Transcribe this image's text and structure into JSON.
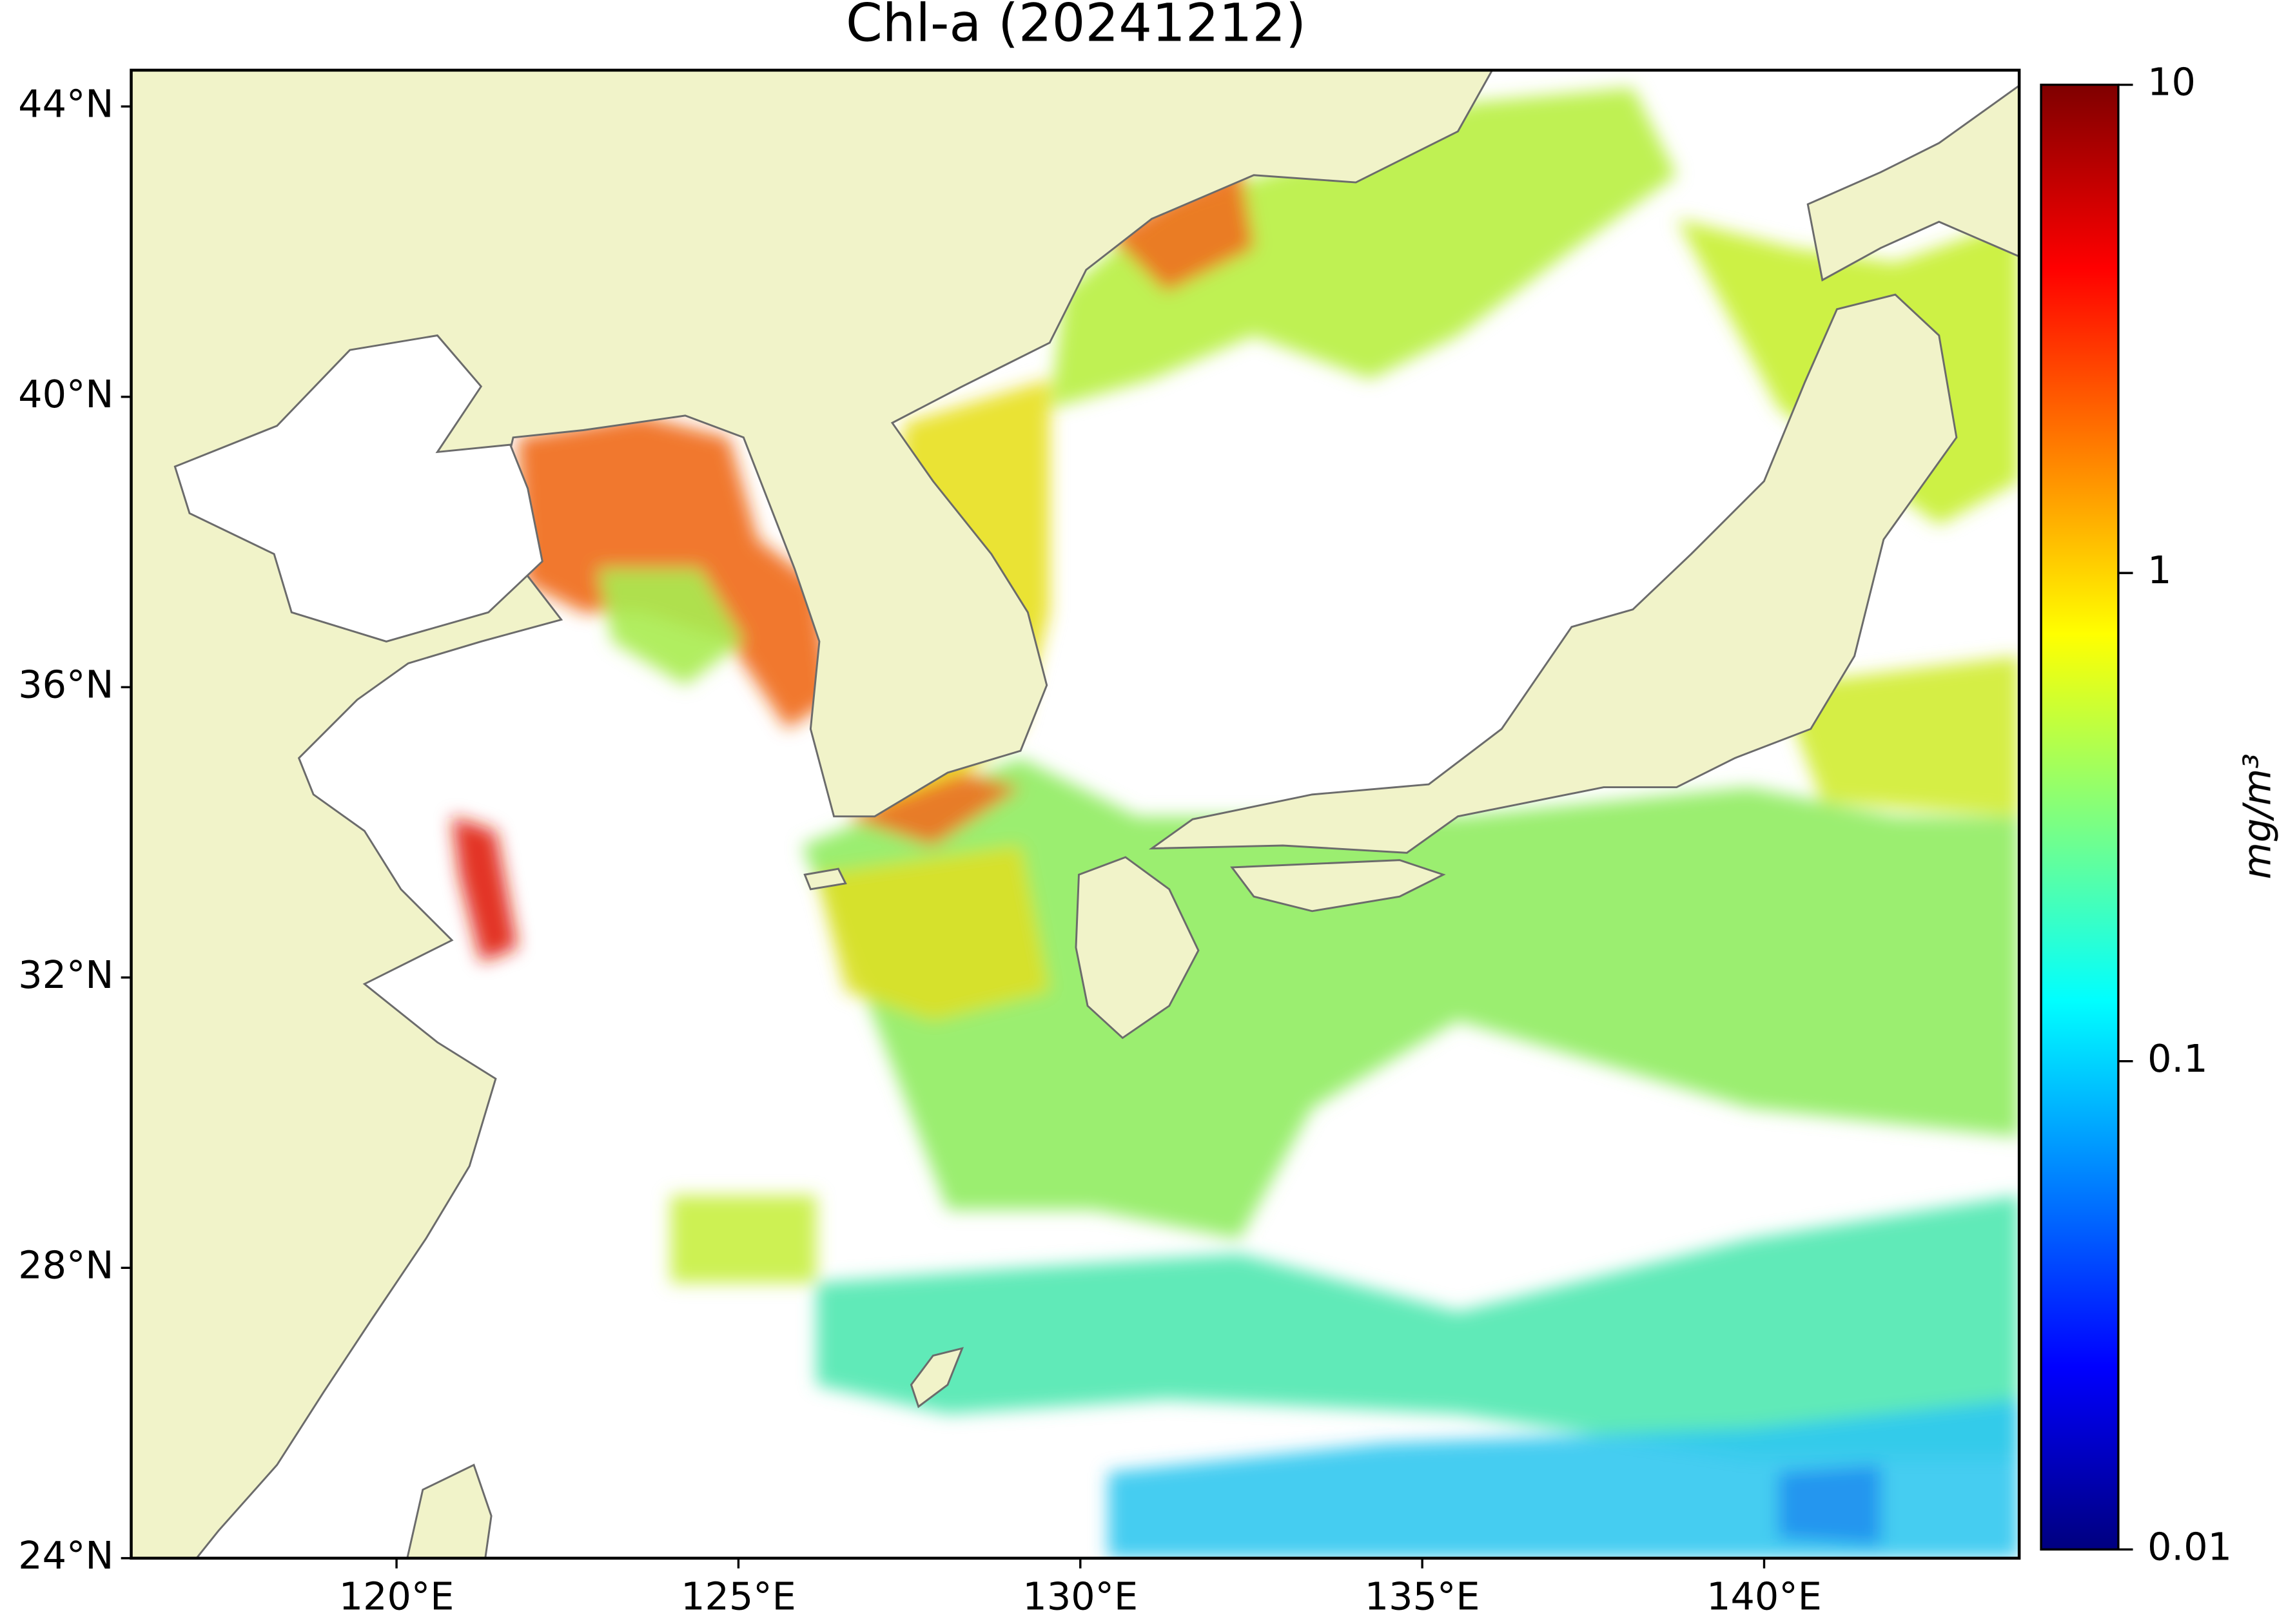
{
  "title": "Chl-a (20241212)",
  "map": {
    "xlim": [
      116.12,
      143.73
    ],
    "ylim": [
      24,
      44.5
    ],
    "xticks": [
      {
        "value": 120,
        "label": "120°E"
      },
      {
        "value": 125,
        "label": "125°E"
      },
      {
        "value": 130,
        "label": "130°E"
      },
      {
        "value": 135,
        "label": "135°E"
      },
      {
        "value": 140,
        "label": "140°E"
      }
    ],
    "yticks": [
      {
        "value": 24,
        "label": "24°N"
      },
      {
        "value": 28,
        "label": "28°N"
      },
      {
        "value": 32,
        "label": "32°N"
      },
      {
        "value": 36,
        "label": "36°N"
      },
      {
        "value": 40,
        "label": "40°N"
      },
      {
        "value": 44,
        "label": "44°N"
      }
    ]
  },
  "colorbar": {
    "label": "mg/m³",
    "scale": "log",
    "lim": [
      0.01,
      10
    ],
    "ticks": [
      0.01,
      0.1,
      1,
      10
    ],
    "colormap": "jet"
  }
}
